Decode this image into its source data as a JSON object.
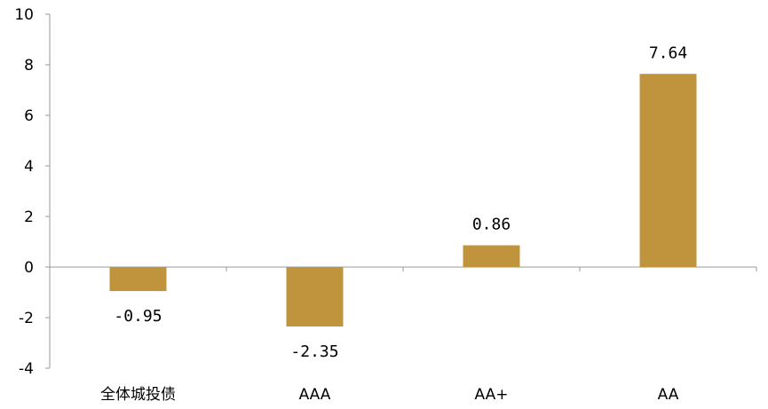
{
  "colors": {
    "bar": "#C0943C",
    "axis": "#999999"
  },
  "chart_data": {
    "type": "bar",
    "categories": [
      "全体城投债",
      "AAA",
      "AA+",
      "AA"
    ],
    "values": [
      -0.95,
      -2.35,
      0.86,
      7.64
    ],
    "data_labels": [
      "-0.95",
      "-2.35",
      "0.86",
      "7.64"
    ],
    "ylim": [
      -4,
      10
    ],
    "yticks": [
      -4,
      -2,
      0,
      2,
      4,
      6,
      8,
      10
    ],
    "ytick_labels": [
      "-4",
      "-2",
      "0",
      "2",
      "4",
      "6",
      "8",
      "10"
    ],
    "grid": false,
    "legend": "none",
    "title": "",
    "xlabel": "",
    "ylabel": ""
  }
}
